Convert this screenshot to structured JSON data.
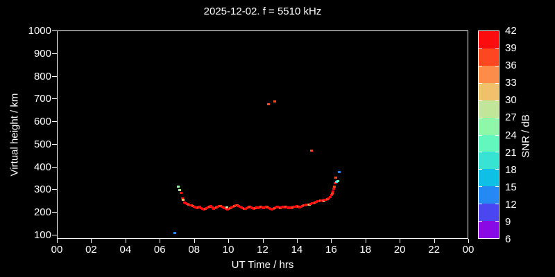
{
  "title": "2025-12-02. f = 5510 kHz",
  "colors": {
    "background": "#000000",
    "text": "#ffffff",
    "axis": "#ffffff"
  },
  "chart_data": {
    "type": "scatter",
    "title": "2025-12-02. f = 5510 kHz",
    "xlabel": "UT Time / hrs",
    "ylabel": "Virtual height / km",
    "xlim": [
      0,
      24
    ],
    "ylim": [
      100,
      1000
    ],
    "grid": false,
    "x_tick_hours": [
      0,
      2,
      4,
      6,
      8,
      10,
      12,
      14,
      16,
      18,
      20,
      22,
      24
    ],
    "x_tick_labels": [
      "00",
      "02",
      "04",
      "06",
      "08",
      "10",
      "12",
      "14",
      "16",
      "18",
      "20",
      "22",
      "00"
    ],
    "y_ticks": [
      100,
      200,
      300,
      400,
      500,
      600,
      700,
      800,
      900,
      1000
    ],
    "colorbar": {
      "label": "SNR / dB",
      "ticks": [
        6,
        9,
        12,
        15,
        18,
        21,
        24,
        27,
        30,
        33,
        36,
        39,
        42
      ],
      "bin_min": 6,
      "bin_max": 42,
      "bin_step": 3,
      "bin_colors_low_to_high": [
        "#8a0ae6",
        "#4a47f0",
        "#2489f2",
        "#0fc0e6",
        "#38e3d4",
        "#63f7bd",
        "#8ff7a8",
        "#c2e699",
        "#f0c06a",
        "#fc8c47",
        "#fc4721",
        "#fc0d0d"
      ]
    },
    "points_format": [
      "ut_time_hrs",
      "virtual_height_km",
      "snr_db"
    ],
    "points": [
      [
        6.88,
        108,
        13
      ],
      [
        12.35,
        676,
        37
      ],
      [
        12.7,
        688,
        37
      ],
      [
        14.86,
        473,
        37
      ],
      [
        7.08,
        315,
        25
      ],
      [
        7.16,
        297,
        28
      ],
      [
        7.25,
        285,
        40
      ],
      [
        7.33,
        262,
        40
      ],
      [
        7.37,
        255,
        31
      ],
      [
        7.45,
        243,
        40
      ],
      [
        7.53,
        239,
        40
      ],
      [
        7.61,
        236,
        40
      ],
      [
        7.69,
        233,
        37
      ],
      [
        7.77,
        230,
        40
      ],
      [
        7.85,
        230,
        40
      ],
      [
        7.93,
        227,
        37
      ],
      [
        8.01,
        224,
        40
      ],
      [
        8.1,
        221,
        40
      ],
      [
        8.18,
        218,
        40
      ],
      [
        8.26,
        221,
        37
      ],
      [
        8.34,
        224,
        40
      ],
      [
        8.42,
        218,
        40
      ],
      [
        8.5,
        215,
        40
      ],
      [
        8.58,
        212,
        40
      ],
      [
        8.66,
        215,
        37
      ],
      [
        8.74,
        218,
        40
      ],
      [
        8.82,
        221,
        40
      ],
      [
        8.91,
        224,
        37
      ],
      [
        8.99,
        227,
        40
      ],
      [
        9.07,
        221,
        40
      ],
      [
        9.15,
        215,
        40
      ],
      [
        9.23,
        218,
        40
      ],
      [
        9.31,
        221,
        37
      ],
      [
        9.39,
        224,
        40
      ],
      [
        9.47,
        227,
        40
      ],
      [
        9.55,
        227,
        37
      ],
      [
        9.63,
        224,
        40
      ],
      [
        9.71,
        221,
        40
      ],
      [
        9.79,
        218,
        40
      ],
      [
        9.87,
        215,
        40
      ],
      [
        9.92,
        221,
        28
      ],
      [
        9.96,
        212,
        40
      ],
      [
        10.04,
        215,
        40
      ],
      [
        10.12,
        218,
        37
      ],
      [
        10.2,
        221,
        40
      ],
      [
        10.28,
        224,
        40
      ],
      [
        10.36,
        227,
        37
      ],
      [
        10.44,
        230,
        40
      ],
      [
        10.52,
        230,
        37
      ],
      [
        10.6,
        227,
        40
      ],
      [
        10.69,
        224,
        40
      ],
      [
        10.77,
        221,
        40
      ],
      [
        10.85,
        218,
        40
      ],
      [
        10.93,
        215,
        37
      ],
      [
        11.01,
        215,
        40
      ],
      [
        11.09,
        218,
        40
      ],
      [
        11.17,
        221,
        40
      ],
      [
        11.25,
        224,
        37
      ],
      [
        11.33,
        221,
        40
      ],
      [
        11.41,
        218,
        40
      ],
      [
        11.49,
        215,
        40
      ],
      [
        11.58,
        218,
        37
      ],
      [
        11.66,
        221,
        40
      ],
      [
        11.74,
        218,
        40
      ],
      [
        11.82,
        221,
        40
      ],
      [
        11.9,
        224,
        37
      ],
      [
        11.98,
        221,
        40
      ],
      [
        12.06,
        218,
        40
      ],
      [
        12.14,
        221,
        40
      ],
      [
        12.22,
        224,
        40
      ],
      [
        12.3,
        221,
        37
      ],
      [
        12.39,
        218,
        40
      ],
      [
        12.47,
        215,
        40
      ],
      [
        12.55,
        212,
        40
      ],
      [
        12.63,
        215,
        40
      ],
      [
        12.71,
        218,
        37
      ],
      [
        12.79,
        221,
        40
      ],
      [
        12.87,
        224,
        40
      ],
      [
        12.95,
        221,
        40
      ],
      [
        13.03,
        218,
        37
      ],
      [
        13.11,
        221,
        40
      ],
      [
        13.2,
        224,
        40
      ],
      [
        13.28,
        221,
        40
      ],
      [
        13.36,
        224,
        37
      ],
      [
        13.44,
        221,
        40
      ],
      [
        13.52,
        218,
        40
      ],
      [
        13.6,
        221,
        40
      ],
      [
        13.68,
        218,
        40
      ],
      [
        13.76,
        221,
        37
      ],
      [
        13.84,
        224,
        40
      ],
      [
        13.92,
        224,
        40
      ],
      [
        14.0,
        227,
        40
      ],
      [
        14.08,
        224,
        37
      ],
      [
        14.17,
        221,
        40
      ],
      [
        14.25,
        224,
        40
      ],
      [
        14.33,
        227,
        40
      ],
      [
        14.41,
        230,
        37
      ],
      [
        14.49,
        230,
        40
      ],
      [
        14.57,
        233,
        40
      ],
      [
        14.65,
        233,
        37
      ],
      [
        14.73,
        233,
        31
      ],
      [
        14.81,
        236,
        40
      ],
      [
        14.9,
        239,
        40
      ],
      [
        14.98,
        239,
        40
      ],
      [
        15.06,
        242,
        37
      ],
      [
        15.14,
        245,
        40
      ],
      [
        15.22,
        248,
        40
      ],
      [
        15.3,
        248,
        40
      ],
      [
        15.38,
        252,
        37
      ],
      [
        15.46,
        252,
        40
      ],
      [
        15.55,
        248,
        40
      ],
      [
        15.59,
        252,
        25
      ],
      [
        15.63,
        255,
        40
      ],
      [
        15.71,
        255,
        40
      ],
      [
        15.79,
        258,
        37
      ],
      [
        15.87,
        261,
        40
      ],
      [
        15.95,
        267,
        40
      ],
      [
        16.03,
        276,
        40
      ],
      [
        16.07,
        282,
        37
      ],
      [
        16.11,
        291,
        40
      ],
      [
        16.15,
        303,
        40
      ],
      [
        16.19,
        315,
        37
      ],
      [
        16.23,
        330,
        40
      ],
      [
        16.27,
        352,
        37
      ],
      [
        16.31,
        336,
        20
      ],
      [
        16.39,
        339,
        23
      ],
      [
        16.47,
        379,
        13
      ]
    ]
  }
}
